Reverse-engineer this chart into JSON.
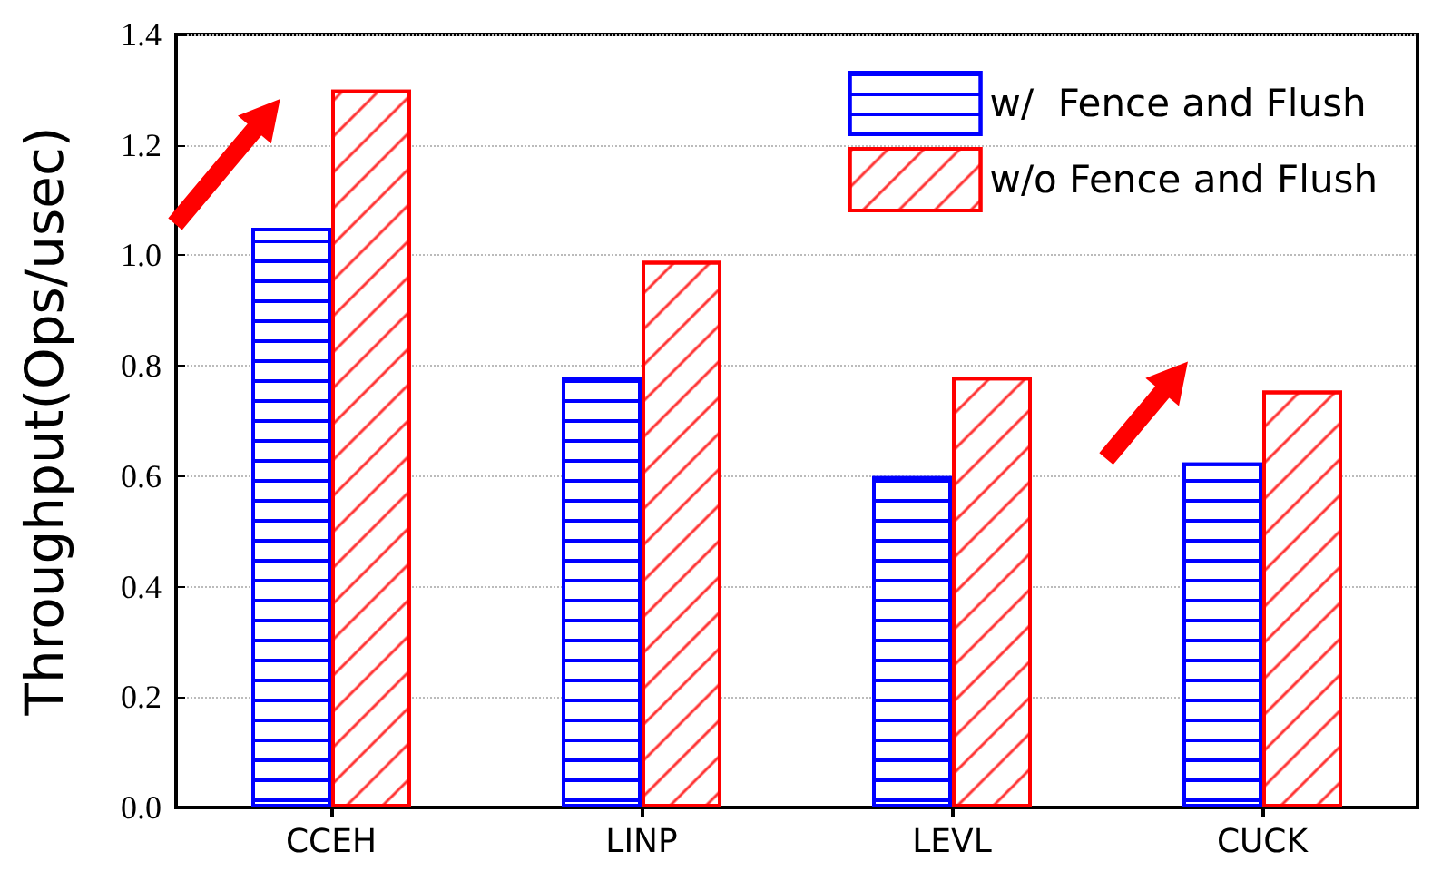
{
  "chart_data": {
    "type": "bar",
    "ylabel": "Throughput(Ops/usec)",
    "categories": [
      "CCEH",
      "LINP",
      "LEVL",
      "CUCK"
    ],
    "series": [
      {
        "name": "w/  Fence and Flush",
        "color": "#0000ff",
        "values": [
          1.05,
          0.78,
          0.6,
          0.625
        ]
      },
      {
        "name": "w/o Fence and Flush",
        "color": "#ff0000",
        "values": [
          1.3,
          0.99,
          0.78,
          0.755
        ]
      }
    ],
    "ylim": [
      0,
      1.4
    ],
    "yticks": [
      {
        "value": 0,
        "label": "0.0"
      },
      0.2,
      0.4,
      0.6,
      0.8,
      {
        "value": 1,
        "label": "1.0"
      },
      1.2,
      1.4
    ],
    "grid": "y",
    "legend": "top right"
  }
}
